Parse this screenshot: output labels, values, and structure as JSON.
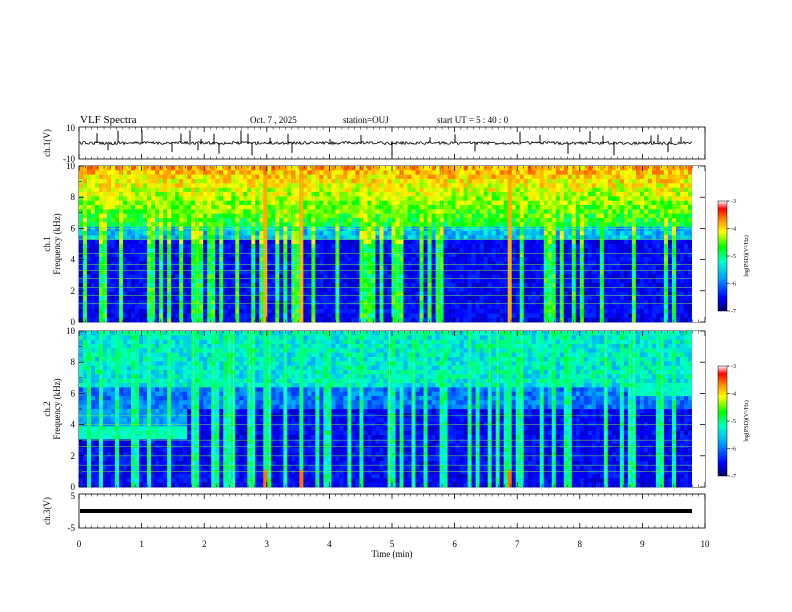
{
  "header": {
    "title": "VLF Spectra",
    "date": "Oct. 7 , 2025",
    "station": "station=OUJ",
    "start": "start UT = 5 : 40 : 0"
  },
  "chart_data": [
    {
      "type": "line",
      "panel": "ch1-waveform",
      "ylabel": "ch.1(V)",
      "yticks": [
        "10",
        "-10"
      ],
      "ylim": [
        -10,
        10
      ],
      "baseline": 0,
      "xlim": [
        0,
        10
      ]
    },
    {
      "type": "heatmap",
      "panel": "ch1-spectrogram",
      "ylabel_line1": "ch.1",
      "ylabel_line2": "Frequency (kHz)",
      "yticks": [
        "0",
        "2",
        "4",
        "6",
        "8",
        "10"
      ],
      "ylim": [
        0,
        10
      ],
      "xlim": [
        0,
        9.8
      ],
      "colorbar": {
        "label": "log(PSD)(V²/Hz)",
        "ticks": [
          "-3",
          "-4",
          "-5",
          "-6",
          "-7"
        ],
        "range": [
          -7,
          -3
        ]
      }
    },
    {
      "type": "heatmap",
      "panel": "ch2-spectrogram",
      "ylabel_line1": "ch.2",
      "ylabel_line2": "Frequency (kHz)",
      "yticks": [
        "0",
        "2",
        "4",
        "6",
        "8",
        "10"
      ],
      "ylim": [
        0,
        10
      ],
      "xlim": [
        0,
        9.8
      ],
      "colorbar": {
        "label": "log(PSD)(V²/Hz)",
        "ticks": [
          "-3",
          "-4",
          "-5",
          "-6",
          "-7"
        ],
        "range": [
          -7,
          -3
        ]
      }
    },
    {
      "type": "line",
      "panel": "ch3-waveform",
      "ylabel": "ch.3(V)",
      "yticks": [
        "5",
        "-5"
      ],
      "ylim": [
        -5,
        5
      ],
      "baseline": 0,
      "xlim": [
        0,
        9.8
      ]
    }
  ],
  "xaxis": {
    "label": "Time (min)",
    "ticks": [
      "0",
      "1",
      "2",
      "3",
      "4",
      "5",
      "6",
      "7",
      "8",
      "9",
      "10"
    ],
    "range": [
      0,
      10
    ]
  }
}
